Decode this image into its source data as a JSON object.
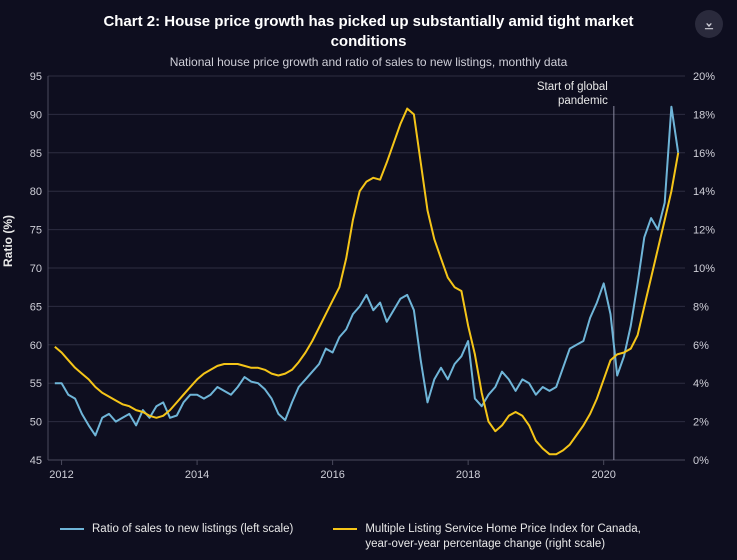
{
  "title": "Chart 2: House price growth has picked up substantially amid tight market conditions",
  "subtitle": "National house price growth and ratio of sales to new listings, monthly data",
  "y_left_label": "Ratio (%)",
  "chart": {
    "type": "line",
    "background_color": "#0e0e1f",
    "grid_color": "#2d2d40",
    "axis_color": "#4a4a5c",
    "title_fontsize": 15,
    "subtitle_fontsize": 12,
    "label_fontsize": 11,
    "x": {
      "min": 2011.8,
      "max": 2021.2,
      "ticks": [
        2012,
        2014,
        2016,
        2018,
        2020
      ],
      "tick_labels": [
        "2012",
        "2014",
        "2016",
        "2018",
        "2020"
      ]
    },
    "y_left": {
      "min": 45,
      "max": 95,
      "step": 5,
      "ticks": [
        45,
        50,
        55,
        60,
        65,
        70,
        75,
        80,
        85,
        90,
        95
      ]
    },
    "y_right": {
      "min": 0,
      "max": 20,
      "step": 2,
      "ticks": [
        0,
        2,
        4,
        6,
        8,
        10,
        12,
        14,
        16,
        18,
        20
      ],
      "tick_labels": [
        "0%",
        "2%",
        "4%",
        "6%",
        "8%",
        "10%",
        "12%",
        "14%",
        "16%",
        "18%",
        "20%"
      ]
    },
    "annotation": {
      "x": 2020.15,
      "lines": [
        "Start of global",
        "pandemic"
      ],
      "line_color": "#8a8aa0"
    },
    "series": [
      {
        "name": "Ratio of sales to new listings (left scale)",
        "axis": "left",
        "color": "#6fb5d8",
        "line_width": 2,
        "data": [
          [
            2011.9,
            55
          ],
          [
            2012.0,
            55
          ],
          [
            2012.1,
            53.5
          ],
          [
            2012.2,
            53
          ],
          [
            2012.3,
            51
          ],
          [
            2012.4,
            49.5
          ],
          [
            2012.5,
            48.2
          ],
          [
            2012.6,
            50.5
          ],
          [
            2012.7,
            51
          ],
          [
            2012.8,
            50
          ],
          [
            2012.9,
            50.5
          ],
          [
            2013.0,
            51
          ],
          [
            2013.1,
            49.5
          ],
          [
            2013.2,
            51.5
          ],
          [
            2013.3,
            50.5
          ],
          [
            2013.4,
            52
          ],
          [
            2013.5,
            52.5
          ],
          [
            2013.6,
            50.5
          ],
          [
            2013.7,
            50.8
          ],
          [
            2013.8,
            52.5
          ],
          [
            2013.9,
            53.5
          ],
          [
            2014.0,
            53.5
          ],
          [
            2014.1,
            53
          ],
          [
            2014.2,
            53.5
          ],
          [
            2014.3,
            54.5
          ],
          [
            2014.4,
            54
          ],
          [
            2014.5,
            53.5
          ],
          [
            2014.6,
            54.5
          ],
          [
            2014.7,
            55.8
          ],
          [
            2014.8,
            55.2
          ],
          [
            2014.9,
            55
          ],
          [
            2015.0,
            54.2
          ],
          [
            2015.1,
            53
          ],
          [
            2015.2,
            51
          ],
          [
            2015.3,
            50.2
          ],
          [
            2015.4,
            52.5
          ],
          [
            2015.5,
            54.5
          ],
          [
            2015.6,
            55.5
          ],
          [
            2015.7,
            56.5
          ],
          [
            2015.8,
            57.5
          ],
          [
            2015.9,
            59.5
          ],
          [
            2016.0,
            59
          ],
          [
            2016.1,
            61
          ],
          [
            2016.2,
            62
          ],
          [
            2016.3,
            64
          ],
          [
            2016.4,
            65
          ],
          [
            2016.5,
            66.5
          ],
          [
            2016.6,
            64.5
          ],
          [
            2016.7,
            65.5
          ],
          [
            2016.8,
            63
          ],
          [
            2016.9,
            64.5
          ],
          [
            2017.0,
            66
          ],
          [
            2017.1,
            66.5
          ],
          [
            2017.2,
            64.5
          ],
          [
            2017.3,
            58
          ],
          [
            2017.4,
            52.5
          ],
          [
            2017.5,
            55.5
          ],
          [
            2017.6,
            57
          ],
          [
            2017.7,
            55.5
          ],
          [
            2017.8,
            57.5
          ],
          [
            2017.9,
            58.5
          ],
          [
            2018.0,
            60.5
          ],
          [
            2018.1,
            53
          ],
          [
            2018.2,
            52
          ],
          [
            2018.3,
            53.5
          ],
          [
            2018.4,
            54.5
          ],
          [
            2018.5,
            56.5
          ],
          [
            2018.6,
            55.5
          ],
          [
            2018.7,
            54
          ],
          [
            2018.8,
            55.5
          ],
          [
            2018.9,
            55
          ],
          [
            2019.0,
            53.5
          ],
          [
            2019.1,
            54.5
          ],
          [
            2019.2,
            54
          ],
          [
            2019.3,
            54.5
          ],
          [
            2019.4,
            57
          ],
          [
            2019.5,
            59.5
          ],
          [
            2019.6,
            60
          ],
          [
            2019.7,
            60.5
          ],
          [
            2019.8,
            63.5
          ],
          [
            2019.9,
            65.5
          ],
          [
            2020.0,
            68
          ],
          [
            2020.1,
            64
          ],
          [
            2020.2,
            56
          ],
          [
            2020.3,
            58.5
          ],
          [
            2020.4,
            62.5
          ],
          [
            2020.5,
            68
          ],
          [
            2020.6,
            74
          ],
          [
            2020.7,
            76.5
          ],
          [
            2020.8,
            75
          ],
          [
            2020.9,
            78.5
          ],
          [
            2021.0,
            91
          ],
          [
            2021.1,
            85
          ]
        ]
      },
      {
        "name": "Multiple Listing Service Home Price Index for Canada, year-over-year percentage change (right scale)",
        "axis": "right",
        "color": "#f5c518",
        "line_width": 2,
        "data": [
          [
            2011.9,
            5.9
          ],
          [
            2012.0,
            5.6
          ],
          [
            2012.1,
            5.2
          ],
          [
            2012.2,
            4.8
          ],
          [
            2012.3,
            4.5
          ],
          [
            2012.4,
            4.2
          ],
          [
            2012.5,
            3.8
          ],
          [
            2012.6,
            3.5
          ],
          [
            2012.7,
            3.3
          ],
          [
            2012.8,
            3.1
          ],
          [
            2012.9,
            2.9
          ],
          [
            2013.0,
            2.8
          ],
          [
            2013.1,
            2.6
          ],
          [
            2013.2,
            2.5
          ],
          [
            2013.3,
            2.3
          ],
          [
            2013.4,
            2.2
          ],
          [
            2013.5,
            2.3
          ],
          [
            2013.6,
            2.6
          ],
          [
            2013.7,
            3.0
          ],
          [
            2013.8,
            3.4
          ],
          [
            2013.9,
            3.8
          ],
          [
            2014.0,
            4.2
          ],
          [
            2014.1,
            4.5
          ],
          [
            2014.2,
            4.7
          ],
          [
            2014.3,
            4.9
          ],
          [
            2014.4,
            5.0
          ],
          [
            2014.5,
            5.0
          ],
          [
            2014.6,
            5.0
          ],
          [
            2014.7,
            4.9
          ],
          [
            2014.8,
            4.8
          ],
          [
            2014.9,
            4.8
          ],
          [
            2015.0,
            4.7
          ],
          [
            2015.1,
            4.5
          ],
          [
            2015.2,
            4.4
          ],
          [
            2015.3,
            4.5
          ],
          [
            2015.4,
            4.7
          ],
          [
            2015.5,
            5.1
          ],
          [
            2015.6,
            5.6
          ],
          [
            2015.7,
            6.2
          ],
          [
            2015.8,
            6.9
          ],
          [
            2015.9,
            7.6
          ],
          [
            2016.0,
            8.3
          ],
          [
            2016.1,
            9.0
          ],
          [
            2016.2,
            10.5
          ],
          [
            2016.3,
            12.5
          ],
          [
            2016.4,
            14.0
          ],
          [
            2016.5,
            14.5
          ],
          [
            2016.6,
            14.7
          ],
          [
            2016.7,
            14.6
          ],
          [
            2016.8,
            15.5
          ],
          [
            2016.9,
            16.5
          ],
          [
            2017.0,
            17.5
          ],
          [
            2017.1,
            18.3
          ],
          [
            2017.2,
            18.0
          ],
          [
            2017.3,
            15.5
          ],
          [
            2017.4,
            13.0
          ],
          [
            2017.5,
            11.5
          ],
          [
            2017.6,
            10.5
          ],
          [
            2017.7,
            9.5
          ],
          [
            2017.8,
            9.0
          ],
          [
            2017.9,
            8.8
          ],
          [
            2018.0,
            7.0
          ],
          [
            2018.1,
            5.5
          ],
          [
            2018.2,
            3.5
          ],
          [
            2018.3,
            2.0
          ],
          [
            2018.4,
            1.5
          ],
          [
            2018.5,
            1.8
          ],
          [
            2018.6,
            2.3
          ],
          [
            2018.7,
            2.5
          ],
          [
            2018.8,
            2.3
          ],
          [
            2018.9,
            1.8
          ],
          [
            2019.0,
            1.0
          ],
          [
            2019.1,
            0.6
          ],
          [
            2019.2,
            0.3
          ],
          [
            2019.3,
            0.3
          ],
          [
            2019.4,
            0.5
          ],
          [
            2019.5,
            0.8
          ],
          [
            2019.6,
            1.3
          ],
          [
            2019.7,
            1.8
          ],
          [
            2019.8,
            2.4
          ],
          [
            2019.9,
            3.2
          ],
          [
            2020.0,
            4.2
          ],
          [
            2020.1,
            5.2
          ],
          [
            2020.2,
            5.5
          ],
          [
            2020.3,
            5.6
          ],
          [
            2020.4,
            5.8
          ],
          [
            2020.5,
            6.5
          ],
          [
            2020.6,
            8.0
          ],
          [
            2020.7,
            9.5
          ],
          [
            2020.8,
            11.0
          ],
          [
            2020.9,
            12.5
          ],
          [
            2021.0,
            14.0
          ],
          [
            2021.1,
            16.0
          ]
        ]
      }
    ],
    "legend": {
      "items": [
        {
          "label": "Ratio of sales to new listings (left scale)",
          "color": "#6fb5d8"
        },
        {
          "label": "Multiple Listing Service Home Price Index for Canada, year-over-year percentage change (right scale)",
          "color": "#f5c518"
        }
      ]
    }
  },
  "download_icon_color": "#cfcfd8"
}
